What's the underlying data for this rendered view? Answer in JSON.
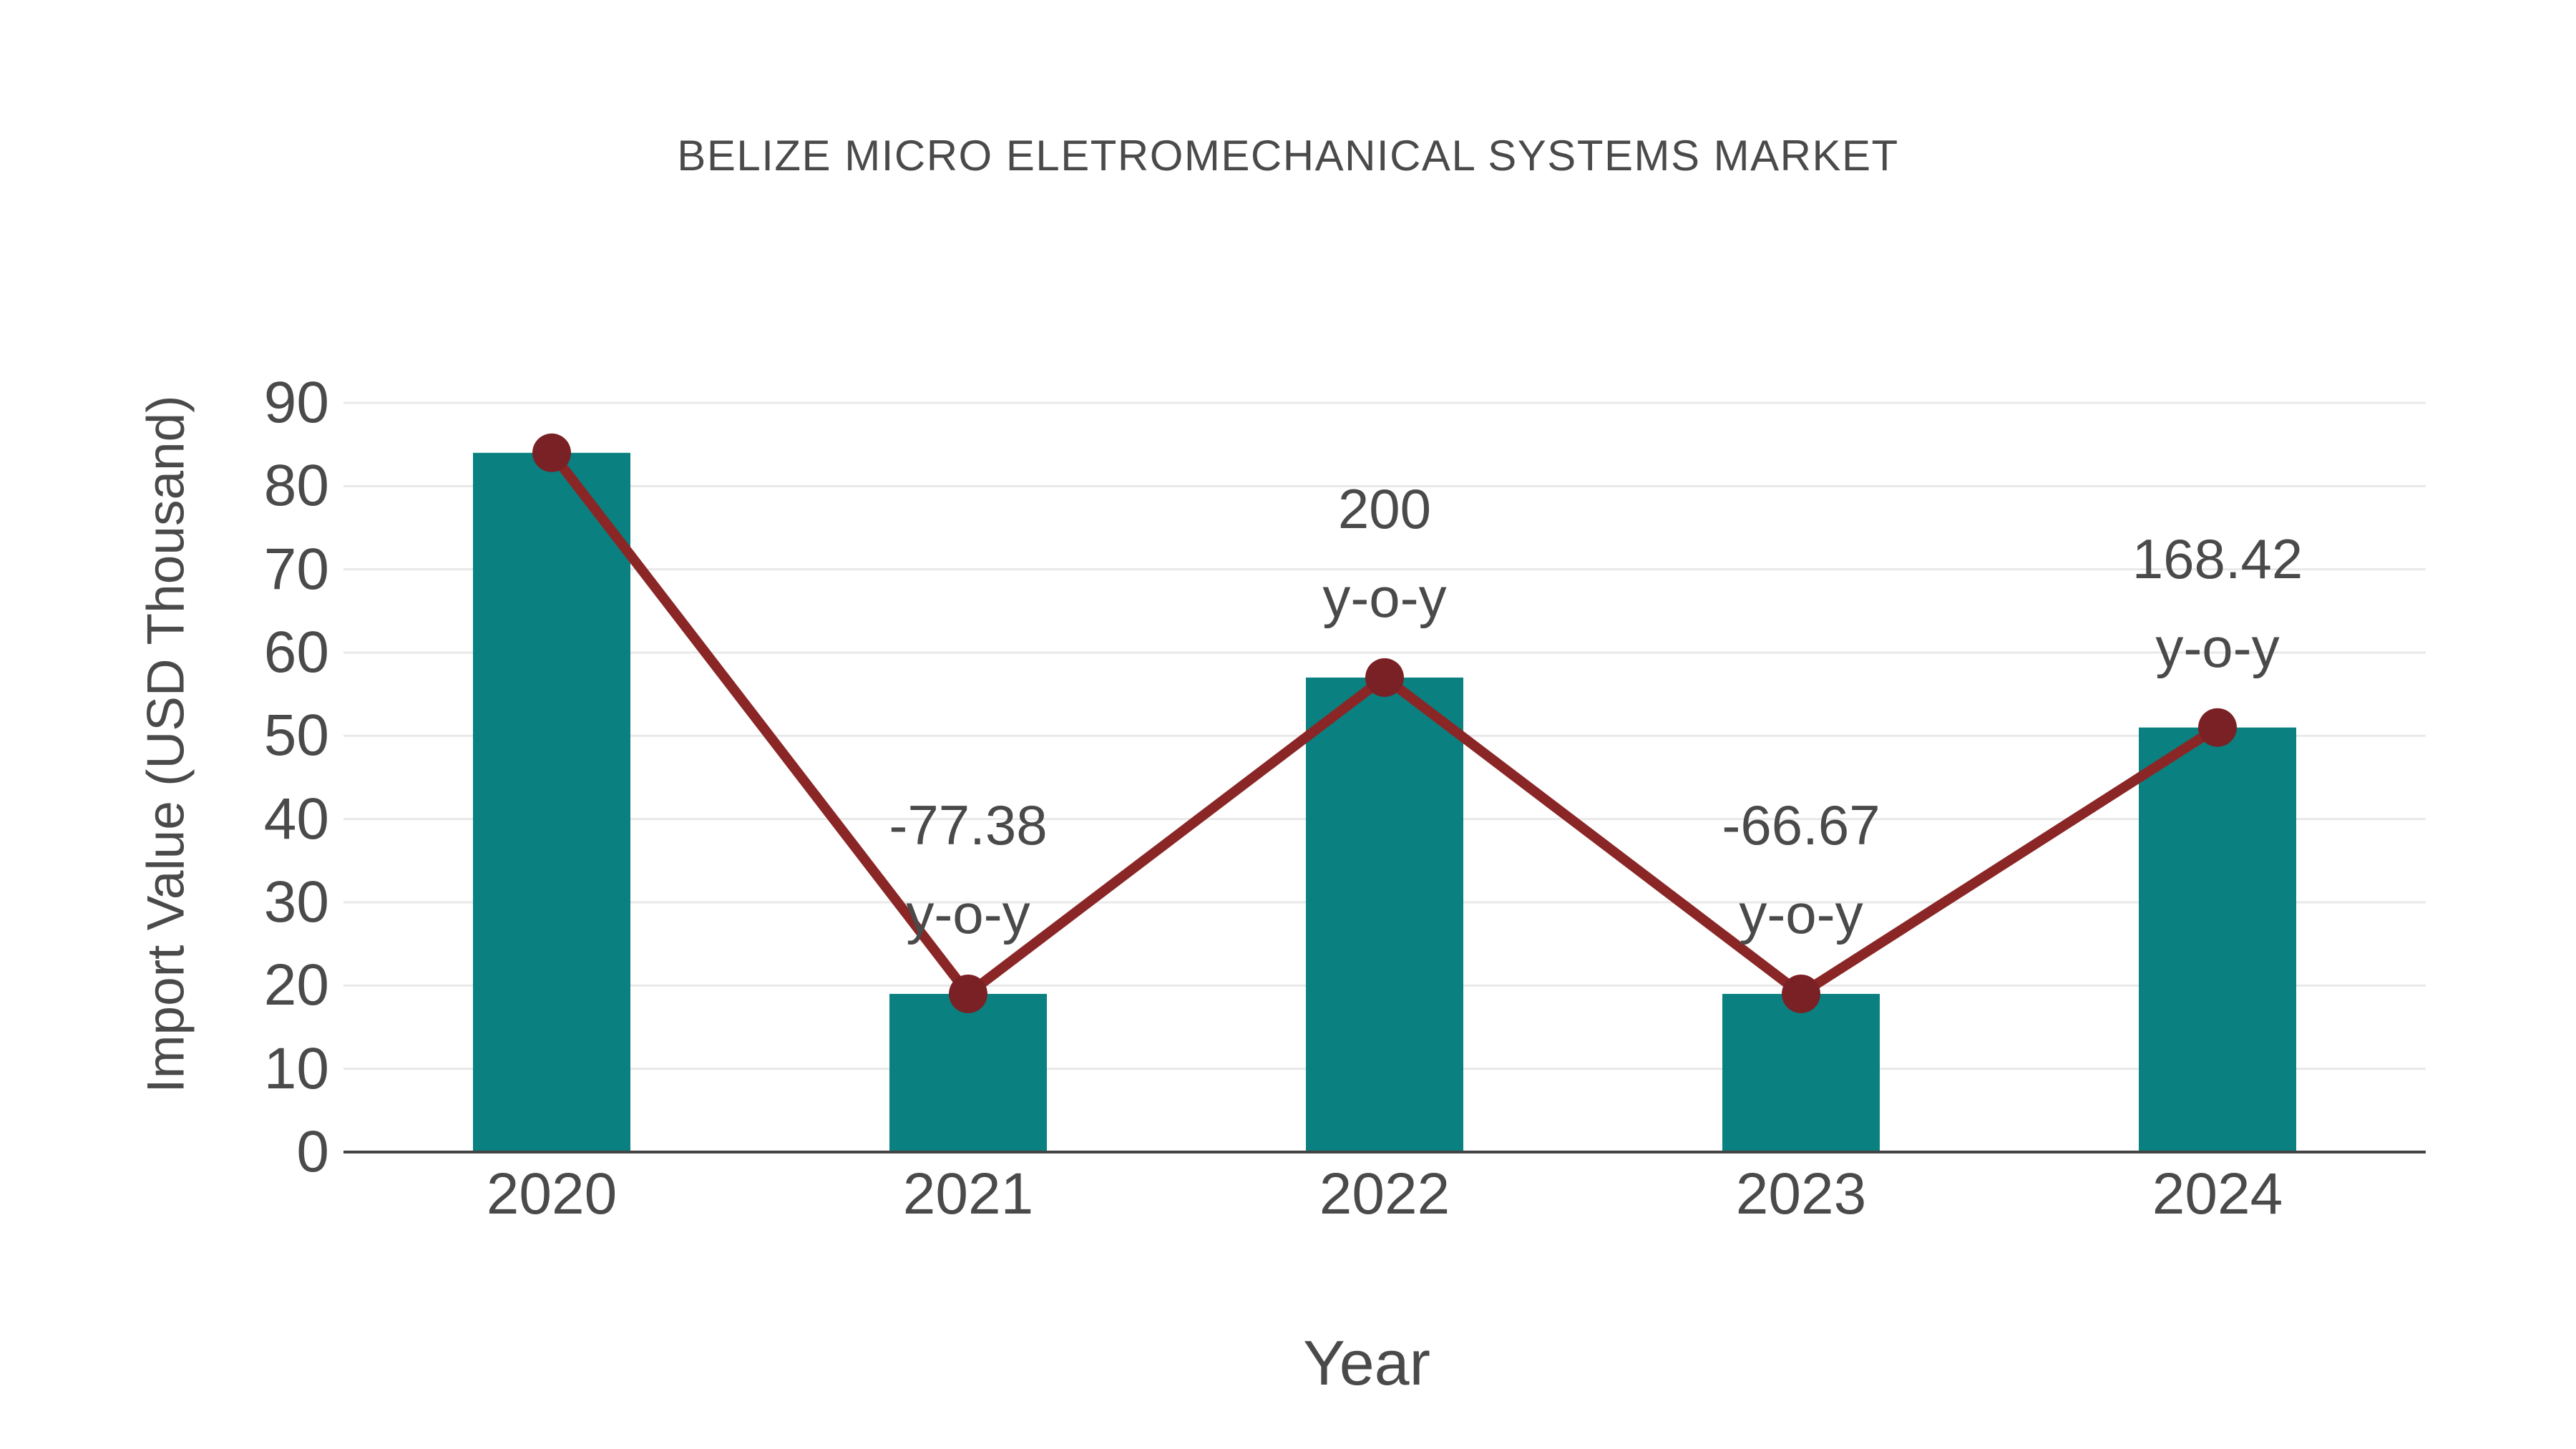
{
  "chart_data": {
    "type": "combo-bar-line",
    "title": "BELIZE MICRO ELETROMECHANICAL SYSTEMS MARKET",
    "xlabel": "Year",
    "ylabel": "Import Value (USD Thousand)",
    "categories": [
      "2020",
      "2021",
      "2022",
      "2023",
      "2024"
    ],
    "series": [
      {
        "name": "import-value-bars",
        "type": "bar",
        "values": [
          84,
          19,
          57,
          19,
          51
        ]
      },
      {
        "name": "yoy-trend-line",
        "type": "line",
        "values": [
          84,
          19,
          57,
          19,
          51
        ]
      }
    ],
    "annotations": [
      {
        "category": "2021",
        "lines": [
          "-77.38",
          "y-o-y"
        ]
      },
      {
        "category": "2022",
        "lines": [
          "200",
          "y-o-y"
        ]
      },
      {
        "category": "2023",
        "lines": [
          "-66.67",
          "y-o-y"
        ]
      },
      {
        "category": "2024",
        "lines": [
          "168.42",
          "y-o-y"
        ]
      }
    ],
    "yticks": [
      0,
      10,
      20,
      30,
      40,
      50,
      60,
      70,
      80,
      90
    ],
    "ylim": [
      0,
      90
    ],
    "grid": true,
    "legend_position": "none",
    "colors": {
      "bar": "#0a8080",
      "line": "#8b2626",
      "marker": "#7a2125",
      "grid": "#e9e9e9",
      "axis": "#444444",
      "text": "#4a4a4a",
      "background": "#ffffff"
    }
  }
}
